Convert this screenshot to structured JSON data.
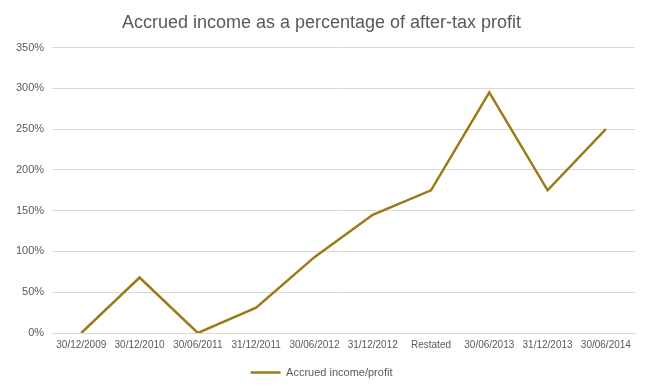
{
  "chart_data": {
    "type": "line",
    "title": "Accrued income as a percentage of after-tax profit",
    "categories": [
      "30/12/2009",
      "30/12/2010",
      "30/06/2011",
      "31/12/2011",
      "30/06/2012",
      "31/12/2012",
      "Restated",
      "30/06/2013",
      "31/12/2013",
      "30/06/2014"
    ],
    "series": [
      {
        "name": "Accrued income/profit",
        "color": "#9a7b16",
        "values": [
          0,
          68,
          0,
          31,
          93,
          145,
          175,
          295,
          175,
          250
        ],
        "marker": "none",
        "line_style": "solid"
      }
    ],
    "ylim": [
      0,
      350
    ],
    "yticks": [
      {
        "value": 0,
        "label": "0%"
      },
      {
        "value": 50,
        "label": "50%"
      },
      {
        "value": 100,
        "label": "100%"
      },
      {
        "value": 150,
        "label": "150%"
      },
      {
        "value": 200,
        "label": "200%"
      },
      {
        "value": 250,
        "label": "250%"
      },
      {
        "value": 300,
        "label": "300%"
      },
      {
        "value": 350,
        "label": "350%"
      }
    ],
    "grid": true,
    "legend": "bottom"
  }
}
